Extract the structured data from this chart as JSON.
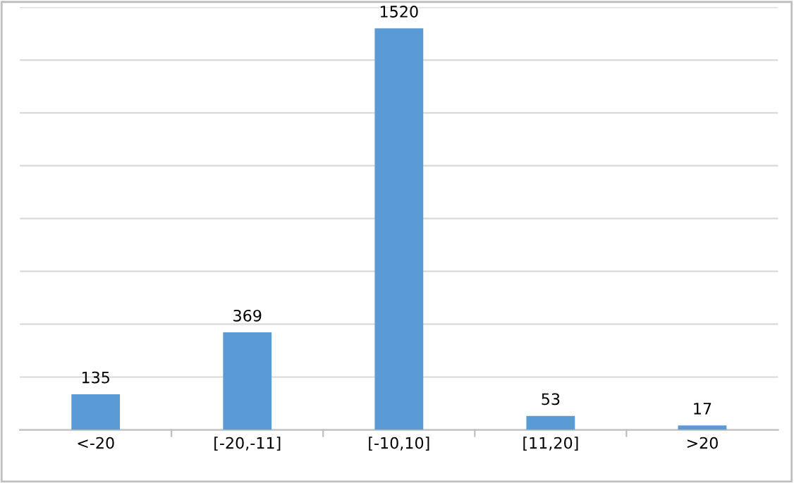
{
  "chart_data": {
    "type": "bar",
    "categories": [
      "<-20",
      "[-20,-11]",
      "[-10,10]",
      "[11,20]",
      ">20"
    ],
    "values": [
      135,
      369,
      1520,
      53,
      17
    ],
    "color": "#5b9bd5",
    "ylim": [
      0,
      1600
    ],
    "yticks": [
      {
        "value": 0,
        "label": null
      },
      {
        "value": 200,
        "label": null
      },
      {
        "value": 400,
        "label": null
      },
      {
        "value": 600,
        "label": null
      },
      {
        "value": 800,
        "label": null
      },
      {
        "value": 1000,
        "label": null
      },
      {
        "value": 1200,
        "label": null
      },
      {
        "value": 1400,
        "label": null
      },
      {
        "value": 1600,
        "label": null
      }
    ],
    "tick_labels": "x",
    "grid": "y",
    "data_labels": true,
    "legend": false
  }
}
